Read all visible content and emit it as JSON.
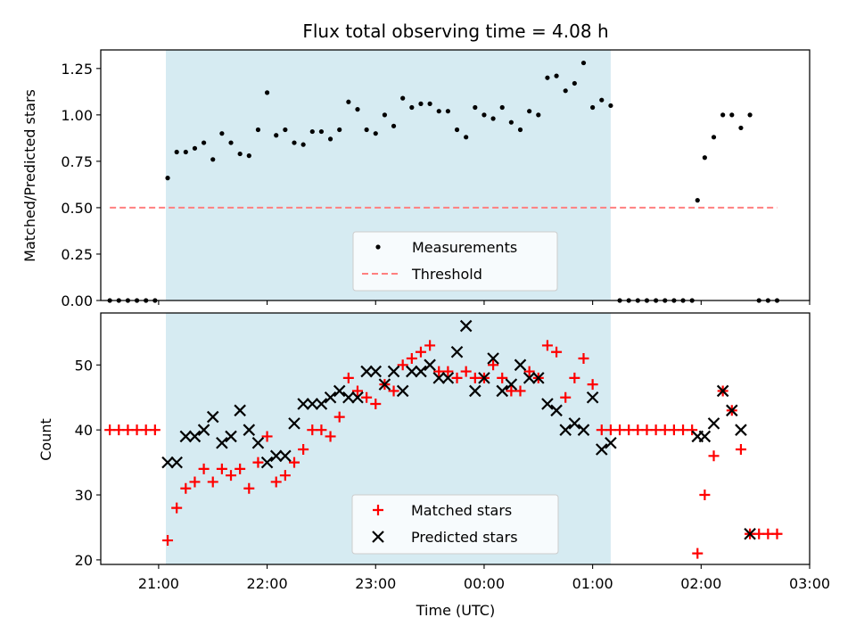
{
  "chart_data": [
    {
      "panel": "top",
      "type": "scatter",
      "title": "Flux total observing time = 4.08 h",
      "xlabel": "",
      "ylabel": "Matched/Predicted stars",
      "xlim": [
        "20:28",
        "03:00"
      ],
      "ylim": [
        0,
        1.35
      ],
      "yticks": [
        "0.00",
        "0.25",
        "0.50",
        "0.75",
        "1.00",
        "1.25"
      ],
      "shaded_interval": [
        "21:04",
        "01:10"
      ],
      "shade_color": "#add8e6",
      "legend": {
        "placement": "lower-center",
        "entries": [
          "Measurements",
          "Threshold"
        ]
      },
      "series": [
        {
          "name": "Measurements",
          "marker": "dot",
          "color": "#000000",
          "points": [
            [
              "20:33",
              0.0
            ],
            [
              "20:38",
              0.0
            ],
            [
              "20:43",
              0.0
            ],
            [
              "20:48",
              0.0
            ],
            [
              "20:53",
              0.0
            ],
            [
              "20:58",
              0.0
            ],
            [
              "21:05",
              0.66
            ],
            [
              "21:10",
              0.8
            ],
            [
              "21:15",
              0.8
            ],
            [
              "21:20",
              0.82
            ],
            [
              "21:25",
              0.85
            ],
            [
              "21:30",
              0.76
            ],
            [
              "21:35",
              0.9
            ],
            [
              "21:40",
              0.85
            ],
            [
              "21:45",
              0.79
            ],
            [
              "21:50",
              0.78
            ],
            [
              "21:55",
              0.92
            ],
            [
              "22:00",
              1.12
            ],
            [
              "22:05",
              0.89
            ],
            [
              "22:10",
              0.92
            ],
            [
              "22:15",
              0.85
            ],
            [
              "22:20",
              0.84
            ],
            [
              "22:25",
              0.91
            ],
            [
              "22:30",
              0.91
            ],
            [
              "22:35",
              0.87
            ],
            [
              "22:40",
              0.92
            ],
            [
              "22:45",
              1.07
            ],
            [
              "22:50",
              1.03
            ],
            [
              "22:55",
              0.92
            ],
            [
              "23:00",
              0.9
            ],
            [
              "23:05",
              1.0
            ],
            [
              "23:10",
              0.94
            ],
            [
              "23:15",
              1.09
            ],
            [
              "23:20",
              1.04
            ],
            [
              "23:25",
              1.06
            ],
            [
              "23:30",
              1.06
            ],
            [
              "23:35",
              1.02
            ],
            [
              "23:40",
              1.02
            ],
            [
              "23:45",
              0.92
            ],
            [
              "23:50",
              0.88
            ],
            [
              "23:55",
              1.04
            ],
            [
              "00:00",
              1.0
            ],
            [
              "00:05",
              0.98
            ],
            [
              "00:10",
              1.04
            ],
            [
              "00:15",
              0.96
            ],
            [
              "00:20",
              0.92
            ],
            [
              "00:25",
              1.02
            ],
            [
              "00:30",
              1.0
            ],
            [
              "00:35",
              1.2
            ],
            [
              "00:40",
              1.21
            ],
            [
              "00:45",
              1.13
            ],
            [
              "00:50",
              1.17
            ],
            [
              "00:55",
              1.28
            ],
            [
              "01:00",
              1.04
            ],
            [
              "01:05",
              1.08
            ],
            [
              "01:10",
              1.05
            ],
            [
              "01:15",
              0.0
            ],
            [
              "01:20",
              0.0
            ],
            [
              "01:25",
              0.0
            ],
            [
              "01:30",
              0.0
            ],
            [
              "01:35",
              0.0
            ],
            [
              "01:40",
              0.0
            ],
            [
              "01:45",
              0.0
            ],
            [
              "01:50",
              0.0
            ],
            [
              "01:55",
              0.0
            ],
            [
              "01:58",
              0.54
            ],
            [
              "02:02",
              0.77
            ],
            [
              "02:07",
              0.88
            ],
            [
              "02:12",
              1.0
            ],
            [
              "02:17",
              1.0
            ],
            [
              "02:22",
              0.93
            ],
            [
              "02:27",
              1.0
            ],
            [
              "02:32",
              0.0
            ],
            [
              "02:37",
              0.0
            ],
            [
              "02:42",
              0.0
            ]
          ]
        },
        {
          "name": "Threshold",
          "marker": "dashed-line",
          "color": "#ff7f7f",
          "points": [
            [
              "20:33",
              0.5
            ],
            [
              "02:42",
              0.5
            ]
          ]
        }
      ]
    },
    {
      "panel": "bottom",
      "type": "scatter",
      "title": "",
      "xlabel": "Time (UTC)",
      "ylabel": "Count",
      "xlim": [
        "20:28",
        "03:00"
      ],
      "ylim": [
        19.3,
        58
      ],
      "xticks": [
        "21:00",
        "22:00",
        "23:00",
        "00:00",
        "01:00",
        "02:00",
        "03:00"
      ],
      "yticks": [
        "20",
        "30",
        "40",
        "50"
      ],
      "shaded_interval": [
        "21:04",
        "01:10"
      ],
      "shade_color": "#add8e6",
      "legend": {
        "placement": "lower-center",
        "entries": [
          "Matched stars",
          "Predicted stars"
        ]
      },
      "series": [
        {
          "name": "Matched stars",
          "marker": "plus",
          "color": "#ff0000",
          "points": [
            [
              "20:33",
              40
            ],
            [
              "20:38",
              40
            ],
            [
              "20:43",
              40
            ],
            [
              "20:48",
              40
            ],
            [
              "20:53",
              40
            ],
            [
              "20:58",
              40
            ],
            [
              "21:05",
              23
            ],
            [
              "21:10",
              28
            ],
            [
              "21:15",
              31
            ],
            [
              "21:20",
              32
            ],
            [
              "21:25",
              34
            ],
            [
              "21:30",
              32
            ],
            [
              "21:35",
              34
            ],
            [
              "21:40",
              33
            ],
            [
              "21:45",
              34
            ],
            [
              "21:50",
              31
            ],
            [
              "21:55",
              35
            ],
            [
              "22:00",
              39
            ],
            [
              "22:05",
              32
            ],
            [
              "22:10",
              33
            ],
            [
              "22:15",
              35
            ],
            [
              "22:20",
              37
            ],
            [
              "22:25",
              40
            ],
            [
              "22:30",
              40
            ],
            [
              "22:35",
              39
            ],
            [
              "22:40",
              42
            ],
            [
              "22:45",
              48
            ],
            [
              "22:50",
              46
            ],
            [
              "22:55",
              45
            ],
            [
              "23:00",
              44
            ],
            [
              "23:05",
              47
            ],
            [
              "23:10",
              46
            ],
            [
              "23:15",
              50
            ],
            [
              "23:20",
              51
            ],
            [
              "23:25",
              52
            ],
            [
              "23:30",
              53
            ],
            [
              "23:35",
              49
            ],
            [
              "23:40",
              49
            ],
            [
              "23:45",
              48
            ],
            [
              "23:50",
              49
            ],
            [
              "23:55",
              48
            ],
            [
              "00:00",
              48
            ],
            [
              "00:05",
              50
            ],
            [
              "00:10",
              48
            ],
            [
              "00:15",
              46
            ],
            [
              "00:20",
              46
            ],
            [
              "00:25",
              49
            ],
            [
              "00:30",
              48
            ],
            [
              "00:35",
              53
            ],
            [
              "00:40",
              52
            ],
            [
              "00:45",
              45
            ],
            [
              "00:50",
              48
            ],
            [
              "00:55",
              51
            ],
            [
              "01:00",
              47
            ],
            [
              "01:05",
              40
            ],
            [
              "01:10",
              40
            ],
            [
              "01:15",
              40
            ],
            [
              "01:20",
              40
            ],
            [
              "01:25",
              40
            ],
            [
              "01:30",
              40
            ],
            [
              "01:35",
              40
            ],
            [
              "01:40",
              40
            ],
            [
              "01:45",
              40
            ],
            [
              "01:50",
              40
            ],
            [
              "01:55",
              40
            ],
            [
              "01:58",
              21
            ],
            [
              "02:02",
              30
            ],
            [
              "02:07",
              36
            ],
            [
              "02:12",
              46
            ],
            [
              "02:17",
              43
            ],
            [
              "02:22",
              37
            ],
            [
              "02:27",
              24
            ],
            [
              "02:32",
              24
            ],
            [
              "02:37",
              24
            ],
            [
              "02:42",
              24
            ]
          ]
        },
        {
          "name": "Predicted stars",
          "marker": "x",
          "color": "#000000",
          "points": [
            [
              "21:05",
              35
            ],
            [
              "21:10",
              35
            ],
            [
              "21:15",
              39
            ],
            [
              "21:20",
              39
            ],
            [
              "21:25",
              40
            ],
            [
              "21:30",
              42
            ],
            [
              "21:35",
              38
            ],
            [
              "21:40",
              39
            ],
            [
              "21:45",
              43
            ],
            [
              "21:50",
              40
            ],
            [
              "21:55",
              38
            ],
            [
              "22:00",
              35
            ],
            [
              "22:05",
              36
            ],
            [
              "22:10",
              36
            ],
            [
              "22:15",
              41
            ],
            [
              "22:20",
              44
            ],
            [
              "22:25",
              44
            ],
            [
              "22:30",
              44
            ],
            [
              "22:35",
              45
            ],
            [
              "22:40",
              46
            ],
            [
              "22:45",
              45
            ],
            [
              "22:50",
              45
            ],
            [
              "22:55",
              49
            ],
            [
              "23:00",
              49
            ],
            [
              "23:05",
              47
            ],
            [
              "23:10",
              49
            ],
            [
              "23:15",
              46
            ],
            [
              "23:20",
              49
            ],
            [
              "23:25",
              49
            ],
            [
              "23:30",
              50
            ],
            [
              "23:35",
              48
            ],
            [
              "23:40",
              48
            ],
            [
              "23:45",
              52
            ],
            [
              "23:50",
              56
            ],
            [
              "23:55",
              46
            ],
            [
              "00:00",
              48
            ],
            [
              "00:05",
              51
            ],
            [
              "00:10",
              46
            ],
            [
              "00:15",
              47
            ],
            [
              "00:20",
              50
            ],
            [
              "00:25",
              48
            ],
            [
              "00:30",
              48
            ],
            [
              "00:35",
              44
            ],
            [
              "00:40",
              43
            ],
            [
              "00:45",
              40
            ],
            [
              "00:50",
              41
            ],
            [
              "00:55",
              40
            ],
            [
              "01:00",
              45
            ],
            [
              "01:05",
              37
            ],
            [
              "01:10",
              38
            ],
            [
              "01:58",
              39
            ],
            [
              "02:02",
              39
            ],
            [
              "02:07",
              41
            ],
            [
              "02:12",
              46
            ],
            [
              "02:17",
              43
            ],
            [
              "02:22",
              40
            ],
            [
              "02:27",
              24
            ]
          ]
        }
      ]
    }
  ]
}
